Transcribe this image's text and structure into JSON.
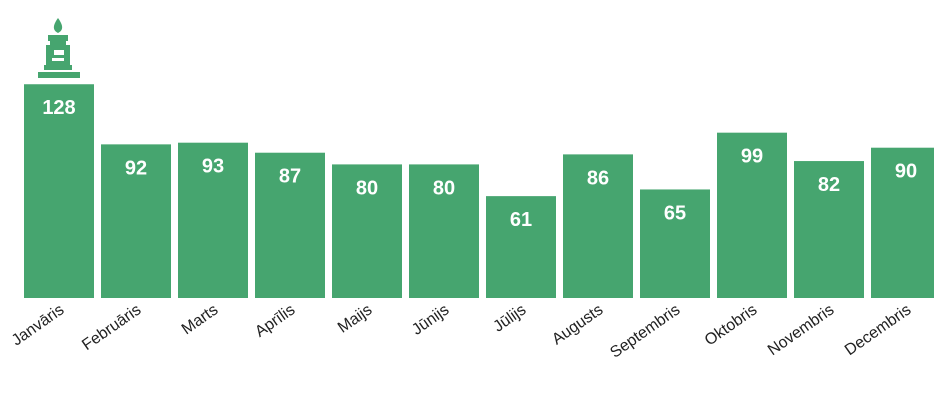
{
  "chart_data": {
    "type": "bar",
    "title": "",
    "xlabel": "",
    "ylabel": "",
    "ylim": [
      0,
      130
    ],
    "categories": [
      "Janvāris",
      "Februāris",
      "Marts",
      "Aprīlis",
      "Maijs",
      "Jūnijs",
      "Jūlijs",
      "Augusts",
      "Septembris",
      "Oktobris",
      "Novembris",
      "Decembris"
    ],
    "values": [
      128,
      92,
      93,
      87,
      80,
      80,
      61,
      86,
      65,
      99,
      82,
      90
    ],
    "highlight_icon": "candle-icon",
    "highlight_category": "Janvāris",
    "bar_color": "#46a56f",
    "label_color": "#ffffff"
  }
}
